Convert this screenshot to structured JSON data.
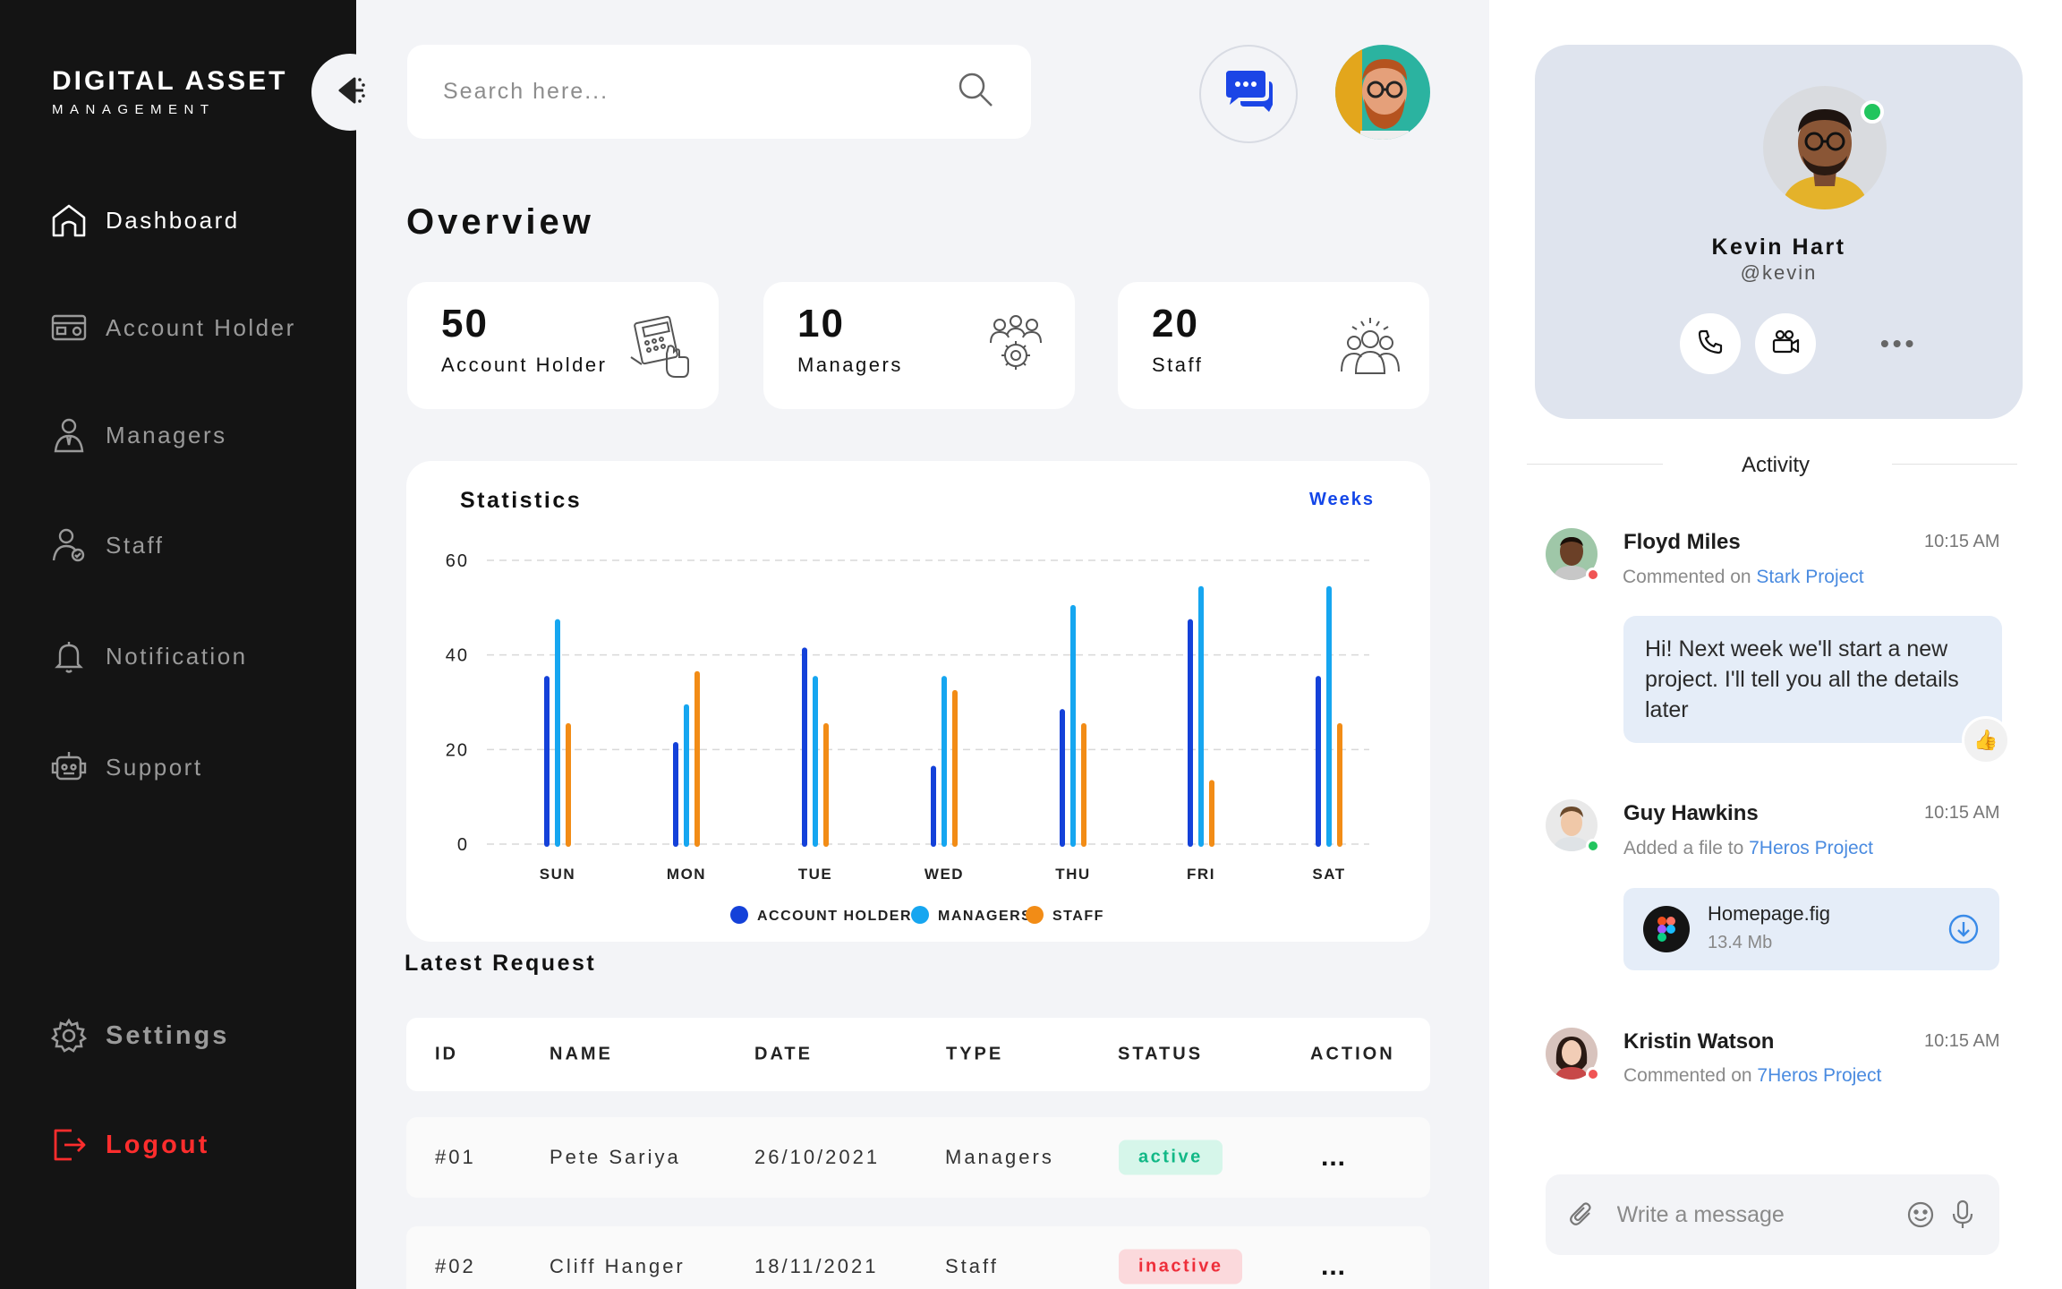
{
  "app": {
    "logo_title": "DIGITAL ASSET",
    "logo_subtitle": "MANAGEMENT"
  },
  "sidebar": {
    "items": [
      {
        "label": "Dashboard",
        "icon": "home-icon"
      },
      {
        "label": "Account Holder",
        "icon": "card-icon"
      },
      {
        "label": "Managers",
        "icon": "manager-icon"
      },
      {
        "label": "Staff",
        "icon": "staff-icon"
      },
      {
        "label": "Notification",
        "icon": "bell-icon"
      },
      {
        "label": "Support",
        "icon": "support-icon"
      }
    ],
    "settings_label": "Settings",
    "logout_label": "Logout"
  },
  "search": {
    "placeholder": "Search here..."
  },
  "overview": {
    "title": "Overview",
    "cards": [
      {
        "value": "50",
        "label": "Account Holder"
      },
      {
        "value": "10",
        "label": "Managers"
      },
      {
        "value": "20",
        "label": "Staff"
      }
    ]
  },
  "statistics": {
    "title": "Statistics",
    "period_label": "Weeks"
  },
  "chart_data": {
    "type": "bar",
    "title": "Statistics",
    "categories": [
      "SUN",
      "MON",
      "TUE",
      "WED",
      "THU",
      "FRI",
      "SAT"
    ],
    "series": [
      {
        "name": "ACCOUNT HOLDER",
        "color": "#1441d9",
        "values": [
          35,
          21,
          41,
          16,
          28,
          47,
          35
        ]
      },
      {
        "name": "MANAGERS",
        "color": "#16a6f0",
        "values": [
          47,
          29,
          35,
          35,
          50,
          54,
          54
        ]
      },
      {
        "name": "STAFF",
        "color": "#f28c16",
        "values": [
          25,
          36,
          25,
          32,
          25,
          13,
          25
        ]
      }
    ],
    "yticks": [
      0,
      20,
      40,
      60
    ],
    "ylim": [
      0,
      60
    ],
    "grid": true,
    "legend": "bottom"
  },
  "latest_request": {
    "title": "Latest Request",
    "columns": [
      "ID",
      "NAME",
      "DATE",
      "TYPE",
      "STATUS",
      "ACTION"
    ],
    "rows": [
      {
        "id": "#01",
        "name": "Pete Sariya",
        "date": "26/10/2021",
        "type": "Managers",
        "status": "active",
        "action": "..."
      },
      {
        "id": "#02",
        "name": "Cliff Hanger",
        "date": "18/11/2021",
        "type": "Staff",
        "status": "inactive",
        "action": "..."
      }
    ]
  },
  "profile": {
    "name": "Kevin Hart",
    "handle": "@kevin",
    "online_color": "#22c55e"
  },
  "activity": {
    "title": "Activity",
    "items": [
      {
        "name": "Floyd Miles",
        "time": "10:15 AM",
        "action": "Commented on",
        "project": "Stark Project",
        "status_color": "#f05454"
      },
      {
        "name": "Guy Hawkins",
        "time": "10:15 AM",
        "action": "Added a file to",
        "project": "7Heros Project",
        "status_color": "#22c55e"
      },
      {
        "name": "Kristin Watson",
        "time": "10:15 AM",
        "action": "Commented on",
        "project": "7Heros Project",
        "status_color": "#f05454"
      }
    ],
    "message": "Hi! Next week we'll start a new project. I'll tell you all the details later",
    "file": {
      "name": "Homepage.fig",
      "size": "13.4 Mb"
    }
  },
  "composer": {
    "placeholder": "Write a message"
  }
}
